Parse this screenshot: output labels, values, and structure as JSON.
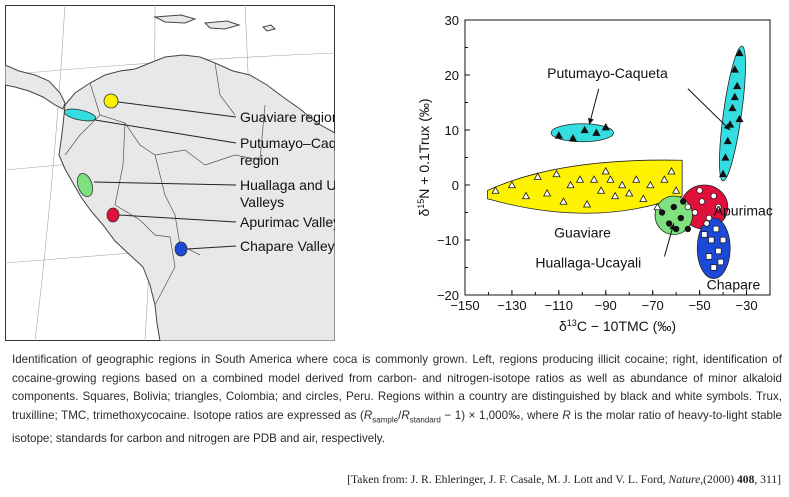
{
  "map": {
    "labels": [
      {
        "lines": [
          "Guaviare region"
        ],
        "color": "#fff200"
      },
      {
        "lines": [
          "Putumayo–Caqueta",
          "region"
        ],
        "color": "#33dde0"
      },
      {
        "lines": [
          "Huallaga and Ucayali",
          "Valleys"
        ],
        "color": "#7fe07f"
      },
      {
        "lines": [
          "Apurimac Valley"
        ],
        "color": "#e0103a"
      },
      {
        "lines": [
          "Chapare Valley"
        ],
        "color": "#1c49d8"
      }
    ]
  },
  "chart_data": {
    "type": "scatter",
    "xlabel_parts": [
      "δ",
      "13",
      "C − 10TMC (‰)"
    ],
    "ylabel_parts": [
      "δ",
      "15",
      "N + 0.1Trux (‰)"
    ],
    "xlim": [
      -150,
      -20
    ],
    "ylim": [
      -20,
      30
    ],
    "xticks": [
      -150,
      -130,
      -110,
      -90,
      -70,
      -50,
      -30
    ],
    "yticks": [
      -20,
      -10,
      0,
      10,
      20,
      30
    ],
    "xtick_labels": [
      "−150",
      "−130",
      "−110",
      "−90",
      "−70",
      "−50",
      "−30"
    ],
    "ytick_labels": [
      "−20",
      "−10",
      "0",
      "10",
      "20",
      "30"
    ],
    "annotations": [
      "Putumayo-Caqueta",
      "Apurimac",
      "Guaviare",
      "Huallaga-Ucayali",
      "Chapare"
    ],
    "regions": [
      {
        "color": "#fff200",
        "points": [
          [
            -137,
            -1
          ],
          [
            -130,
            0
          ],
          [
            -124,
            -2
          ],
          [
            -119,
            1.5
          ],
          [
            -115,
            -1.5
          ],
          [
            -111,
            2
          ],
          [
            -108,
            -3
          ],
          [
            -105,
            0
          ],
          [
            -101,
            1
          ],
          [
            -98,
            -3.5
          ],
          [
            -95,
            1
          ],
          [
            -92,
            -1
          ],
          [
            -90,
            2.5
          ],
          [
            -88,
            1
          ],
          [
            -86,
            -2
          ],
          [
            -83,
            0
          ],
          [
            -80,
            -1.5
          ],
          [
            -77,
            1
          ],
          [
            -74,
            -2.5
          ],
          [
            -71,
            0
          ],
          [
            -68,
            -4
          ],
          [
            -65,
            1
          ],
          [
            -62,
            2.5
          ],
          [
            -60,
            -1
          ]
        ]
      },
      {
        "color": "#33dde0",
        "points": [
          [
            -110,
            9
          ],
          [
            -104,
            8.5
          ],
          [
            -99,
            10
          ],
          [
            -94,
            9.5
          ],
          [
            -90,
            10.5
          ],
          [
            -40,
            2
          ],
          [
            -39,
            5
          ],
          [
            -38,
            8
          ],
          [
            -37,
            11
          ],
          [
            -36,
            14
          ],
          [
            -35,
            16
          ],
          [
            -34,
            18
          ],
          [
            -33,
            12
          ],
          [
            -35,
            21
          ],
          [
            -33,
            24
          ]
        ]
      },
      {
        "color": "#e0103a",
        "points": [
          [
            -55,
            -4
          ],
          [
            -52,
            -5
          ],
          [
            -49,
            -3
          ],
          [
            -46,
            -6
          ],
          [
            -44,
            -2
          ],
          [
            -42,
            -4
          ],
          [
            -47,
            -7
          ],
          [
            -50,
            -1
          ]
        ]
      },
      {
        "color": "#7fe07f",
        "points": [
          [
            -66,
            -5
          ],
          [
            -63,
            -7
          ],
          [
            -61,
            -4
          ],
          [
            -58,
            -6
          ],
          [
            -57,
            -3
          ],
          [
            -55,
            -8
          ],
          [
            -60,
            -8
          ]
        ]
      },
      {
        "color": "#1c49d8",
        "points": [
          [
            -48,
            -9
          ],
          [
            -45,
            -10
          ],
          [
            -43,
            -8
          ],
          [
            -42,
            -12
          ],
          [
            -46,
            -13
          ],
          [
            -40,
            -10
          ],
          [
            -44,
            -15
          ],
          [
            -41,
            -14
          ]
        ]
      }
    ]
  },
  "caption": {
    "text_part1": "Identification of geographic regions in South America where coca is commonly grown. Left, regions producing illicit cocaine; right, identification of cocaine-growing regions based on a combined model derived from carbon- and nitrogen-isotope ratios as well as abundance of minor alkaloid components. Squares, Bolivia; triangles, Colombia; and circles, Peru. Regions within a country are distinguished by black and white symbols. Trux, truxilline; TMC, trimethoxycocaine. Isotope ratios are expressed as (",
    "r_symbol": "R",
    "sub_sample": "sample",
    "sub_standard": "standard",
    "text_part2": " − 1) × 1,000‰, where ",
    "text_part3": " is the molar ratio of heavy-to-light stable isotope; standards for carbon and nitrogen are PDB and air, respectively."
  },
  "citation": {
    "prefix": "[Taken from: J. R. Ehleringer, J. F. Casale, M. J. Lott and V. L. Ford, ",
    "journal": "Nature",
    "year": ",(2000) ",
    "volume": "408",
    "pages": ", 311]"
  }
}
